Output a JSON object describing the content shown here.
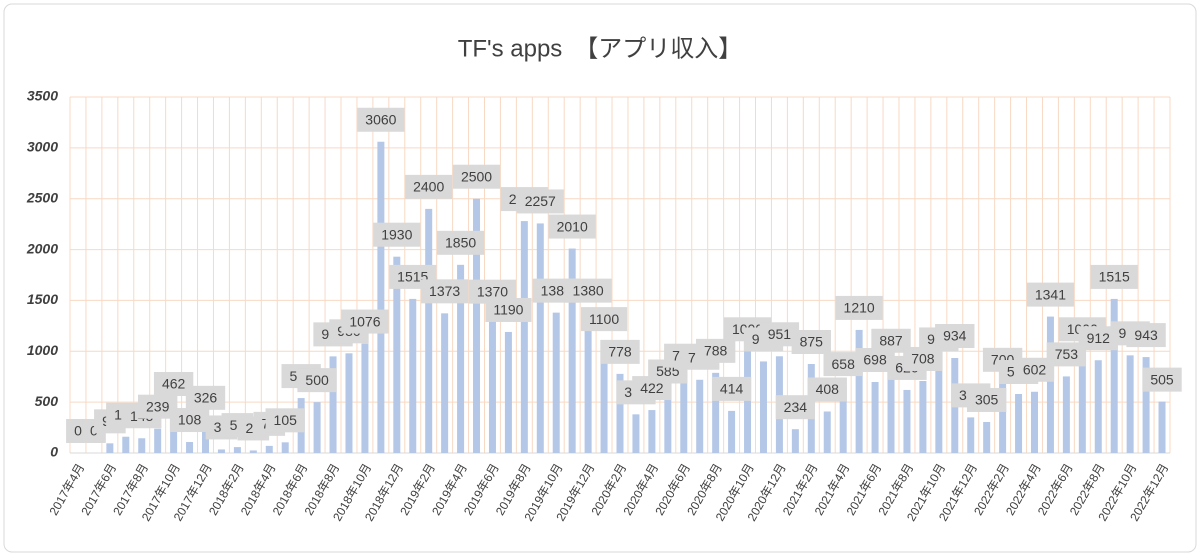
{
  "chart_data": {
    "type": "bar",
    "title": "TF's apps　【アプリ収入】",
    "categories": [
      "2017年4月",
      null,
      "2017年6月",
      null,
      "2017年8月",
      null,
      "2017年10月",
      null,
      "2017年12月",
      null,
      "2018年2月",
      null,
      "2018年4月",
      null,
      "2018年6月",
      null,
      "2018年8月",
      null,
      "2018年10月",
      null,
      "2018年12月",
      null,
      "2019年2月",
      null,
      "2019年4月",
      null,
      "2019年6月",
      null,
      "2019年8月",
      null,
      "2019年10月",
      null,
      "2019年12月",
      null,
      "2020年2月",
      null,
      "2020年4月",
      null,
      "2020年6月",
      null,
      "2020年8月",
      null,
      "2020年10月",
      null,
      "2020年12月",
      null,
      "2021年2月",
      null,
      "2021年4月",
      null,
      "2021年6月",
      null,
      "2021年8月",
      null,
      "2021年10月",
      null,
      "2021年12月",
      null,
      "2022年2月",
      null,
      "2022年4月",
      null,
      "2022年6月",
      null,
      "2022年8月",
      null,
      "2022年10月",
      null,
      "2022年12月"
    ],
    "values": [
      0,
      0,
      95,
      160,
      145,
      239,
      462,
      108,
      326,
      35,
      58,
      25,
      70,
      105,
      540,
      500,
      950,
      980,
      1076,
      3060,
      1930,
      1515,
      2400,
      1373,
      1850,
      2500,
      1370,
      1190,
      2280,
      2257,
      1380,
      2010,
      1380,
      1100,
      778,
      380,
      422,
      585,
      740,
      720,
      788,
      414,
      1000,
      900,
      951,
      234,
      875,
      408,
      658,
      1210,
      698,
      887,
      620,
      708,
      900,
      934,
      350,
      305,
      700,
      580,
      602,
      1341,
      753,
      1000,
      912,
      1515,
      960,
      943,
      505
    ],
    "color": "#b4c7e7",
    "ylim": [
      0,
      3500
    ],
    "yticks": [
      0,
      500,
      1000,
      1500,
      2000,
      2500,
      3000,
      3500
    ],
    "grid": true
  }
}
